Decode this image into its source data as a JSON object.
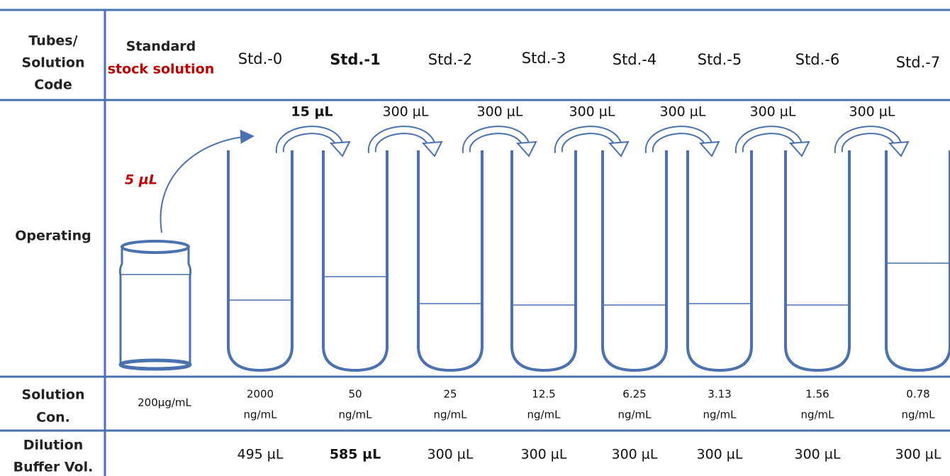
{
  "row_headers": {
    "tubes": [
      "Tubes/",
      "Solution",
      "Code"
    ],
    "operating": "Operating",
    "concentration": [
      "Solution",
      "Con."
    ],
    "buffer": [
      "Dilution",
      "Buffer Vol."
    ]
  },
  "stock": {
    "label": [
      "Standard",
      "stock solution"
    ],
    "transfer": "5 µL",
    "concentration": "200µg/mL"
  },
  "tubes": [
    {
      "code": "Std.-0",
      "concentration": [
        "2000",
        "ng/mL"
      ],
      "buffer": "495 µL"
    },
    {
      "code": "Std.-1",
      "concentration": [
        "50",
        "ng/mL"
      ],
      "buffer": "585 µL"
    },
    {
      "code": "Std.-2",
      "concentration": [
        "25",
        "ng/mL"
      ],
      "buffer": "300 µL"
    },
    {
      "code": "Std.-3",
      "concentration": [
        "12.5",
        "ng/mL"
      ],
      "buffer": "300 µL"
    },
    {
      "code": "Std.-4",
      "concentration": [
        "6.25",
        "ng/mL"
      ],
      "buffer": "300 µL"
    },
    {
      "code": "Std.-5",
      "concentration": [
        "3.13",
        "ng/mL"
      ],
      "buffer": "300 µL"
    },
    {
      "code": "Std.-6",
      "concentration": [
        "1.56",
        "ng/mL"
      ],
      "buffer": "300 µL"
    },
    {
      "code": "Std.-7",
      "concentration": [
        "0.78",
        "ng/mL"
      ],
      "buffer": "300 µL"
    }
  ],
  "transfers": [
    "15 µL",
    "300 µL",
    "300 µL",
    "300 µL",
    "300 µL",
    "300 µL",
    "300 µL"
  ]
}
